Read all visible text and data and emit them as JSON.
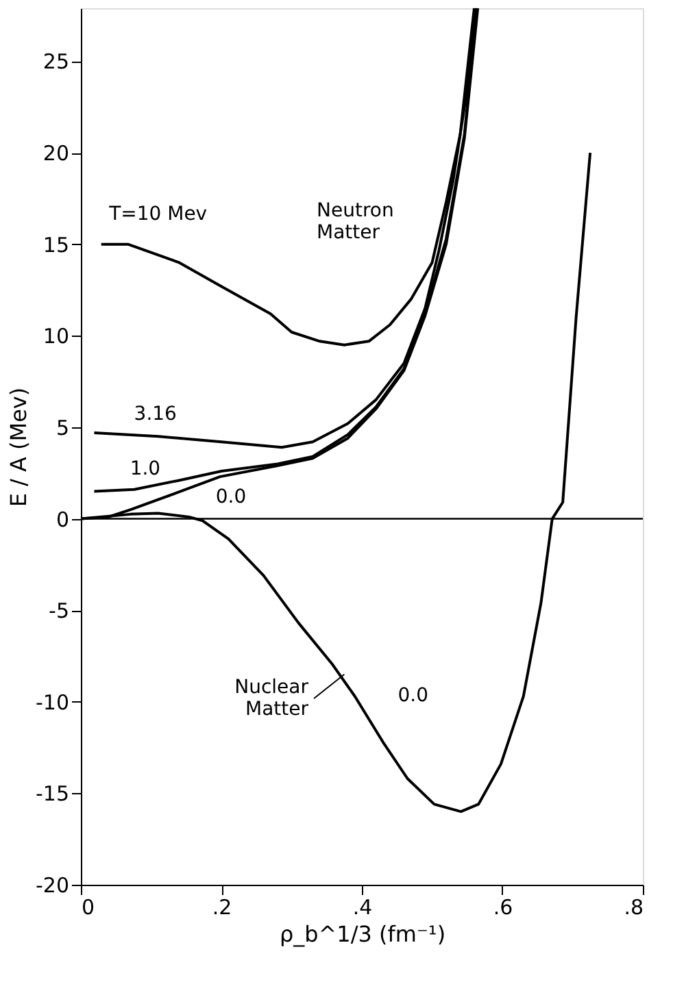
{
  "chart_data": {
    "type": "line",
    "xlabel": "ρ_b^1/3 (fm⁻¹)",
    "ylabel": "E / A  (Mev)",
    "xlim": [
      0,
      0.8
    ],
    "ylim": [
      -20,
      27.9
    ],
    "xticks": [
      0,
      {
        "value": 0.2,
        "label": ".2"
      },
      {
        "value": 0.4,
        "label": ".4"
      },
      {
        "value": 0.6,
        "label": ".6"
      },
      {
        "value": 0.8,
        "label": ".8"
      }
    ],
    "yticks": [
      -20,
      -15,
      -10,
      -5,
      0,
      5,
      10,
      15,
      20,
      25
    ],
    "grid": false,
    "marker": "none",
    "line_style": "solid",
    "ref_lines": [
      {
        "axis": "y",
        "value": 0,
        "color": "#000000"
      }
    ],
    "series": [
      {
        "name": "T=10 Mev",
        "color": "#000000",
        "x": [
          0.029,
          0.067,
          0.14,
          0.2,
          0.27,
          0.3,
          0.34,
          0.375,
          0.41,
          0.44,
          0.47,
          0.5,
          0.52,
          0.54,
          0.555,
          0.56
        ],
        "values": [
          15.0,
          15.0,
          14.0,
          12.7,
          11.2,
          10.2,
          9.7,
          9.5,
          9.7,
          10.6,
          12.0,
          14.0,
          17.3,
          21.0,
          26.2,
          27.9
        ]
      },
      {
        "name": "3.16",
        "color": "#000000",
        "x": [
          0.019,
          0.11,
          0.2,
          0.286,
          0.33,
          0.38,
          0.42,
          0.46,
          0.49,
          0.51,
          0.53,
          0.55,
          0.562
        ],
        "values": [
          4.7,
          4.5,
          4.2,
          3.9,
          4.2,
          5.2,
          6.5,
          8.5,
          11.5,
          14.7,
          18.5,
          23.5,
          27.9
        ]
      },
      {
        "name": "1.0",
        "color": "#000000",
        "x": [
          0.019,
          0.076,
          0.14,
          0.2,
          0.28,
          0.33,
          0.38,
          0.42,
          0.46,
          0.49,
          0.52,
          0.546,
          0.564
        ],
        "values": [
          1.5,
          1.6,
          2.1,
          2.6,
          3.0,
          3.4,
          4.6,
          6.1,
          8.2,
          11.2,
          15.3,
          21.0,
          27.9
        ]
      },
      {
        "name": "0.0",
        "color": "#000000",
        "x": [
          0,
          0.039,
          0.071,
          0.135,
          0.198,
          0.28,
          0.33,
          0.38,
          0.42,
          0.46,
          0.49,
          0.52,
          0.546,
          0.565
        ],
        "values": [
          0,
          0.1,
          0.5,
          1.4,
          2.3,
          2.9,
          3.3,
          4.4,
          6.0,
          8.1,
          11.1,
          15.0,
          20.8,
          27.9
        ]
      },
      {
        "name": "0.0",
        "color": "#000000",
        "x": [
          0,
          0.071,
          0.11,
          0.154,
          0.173,
          0.21,
          0.26,
          0.31,
          0.357,
          0.39,
          0.43,
          0.465,
          0.503,
          0.541,
          0.566,
          0.598,
          0.63,
          0.655,
          0.671,
          0.686,
          0.705,
          0.725
        ],
        "values": [
          0,
          0.25,
          0.3,
          0.1,
          -0.1,
          -1.1,
          -3.1,
          -5.7,
          -7.9,
          -9.7,
          -12.2,
          -14.2,
          -15.6,
          -16.0,
          -15.6,
          -13.4,
          -9.7,
          -4.6,
          0,
          0.9,
          11.0,
          20.0
        ]
      }
    ],
    "annotations": [
      "Neutron\nMatter",
      {
        "text": "Nuclear\nMatter",
        "x": 0.375,
        "y": -8.5
      }
    ]
  }
}
